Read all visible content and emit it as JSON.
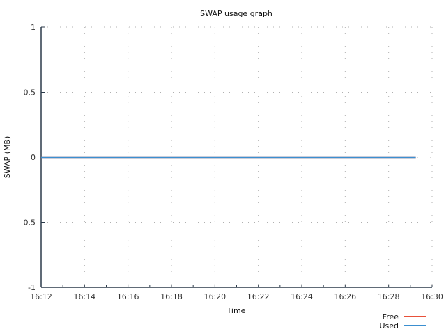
{
  "chart_data": {
    "type": "line",
    "title": "SWAP usage graph",
    "xlabel": "Time",
    "ylabel": "SWAP (MB)",
    "x_ticks": [
      "16:12",
      "16:14",
      "16:16",
      "16:18",
      "16:20",
      "16:22",
      "16:24",
      "16:26",
      "16:28",
      "16:30"
    ],
    "x_range": [
      "16:12",
      "16:30"
    ],
    "y_ticks": [
      "1",
      "0.5",
      "0",
      "-0.5",
      "-1"
    ],
    "ylim": [
      -1,
      1
    ],
    "grid": true,
    "legend_position": "bottom-right",
    "series": [
      {
        "name": "Free",
        "color": "#e8513a",
        "x": [
          "16:12",
          "16:29:15"
        ],
        "values": [
          0,
          0
        ]
      },
      {
        "name": "Used",
        "color": "#3b8fd0",
        "x": [
          "16:12",
          "16:29:15"
        ],
        "values": [
          0,
          0
        ]
      }
    ]
  }
}
